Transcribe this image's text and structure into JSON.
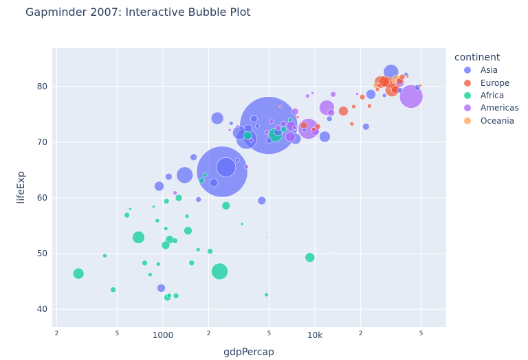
{
  "title": "Gapminder 2007: Interactive Bubble Plot",
  "chart_data": {
    "type": "scatter",
    "title": "Gapminder 2007: Interactive Bubble Plot",
    "xlabel": "gdpPercap",
    "ylabel": "lifeExp",
    "xscale": "log",
    "xlim": [
      187,
      73000
    ],
    "ylim": [
      36.8,
      86.9
    ],
    "grid": true,
    "legend_title": "continent",
    "legend_position": "right",
    "x_ticks": [
      {
        "value": 200,
        "label": "2",
        "major": false
      },
      {
        "value": 500,
        "label": "5",
        "major": false
      },
      {
        "value": 1000,
        "label": "1000",
        "major": true
      },
      {
        "value": 2000,
        "label": "2",
        "major": false
      },
      {
        "value": 5000,
        "label": "5",
        "major": false
      },
      {
        "value": 10000,
        "label": "10k",
        "major": true
      },
      {
        "value": 20000,
        "label": "2",
        "major": false
      },
      {
        "value": 50000,
        "label": "5",
        "major": false
      }
    ],
    "y_ticks": [
      40,
      50,
      60,
      70,
      80
    ],
    "series": [
      {
        "name": "Asia",
        "color": "#636efa",
        "points": [
          {
            "x": 4959,
            "y": 73.0,
            "r": 42
          },
          {
            "x": 2452,
            "y": 64.7,
            "r": 37
          },
          {
            "x": 2605,
            "y": 65.5,
            "r": 14
          },
          {
            "x": 3540,
            "y": 70.6,
            "r": 15
          },
          {
            "x": 3190,
            "y": 71.7,
            "r": 10
          },
          {
            "x": 2280,
            "y": 74.3,
            "r": 9
          },
          {
            "x": 1391,
            "y": 64.1,
            "r": 12
          },
          {
            "x": 31656,
            "y": 82.6,
            "r": 11
          },
          {
            "x": 11606,
            "y": 71.0,
            "r": 8
          },
          {
            "x": 7458,
            "y": 70.6,
            "r": 8
          },
          {
            "x": 47143,
            "y": 79.8,
            "r": 4
          },
          {
            "x": 23348,
            "y": 78.6,
            "r": 7
          },
          {
            "x": 21655,
            "y": 72.8,
            "r": 5
          },
          {
            "x": 39725,
            "y": 82.2,
            "r": 3
          },
          {
            "x": 944,
            "y": 62.1,
            "r": 7
          },
          {
            "x": 1091,
            "y": 63.8,
            "r": 5
          },
          {
            "x": 1593,
            "y": 67.3,
            "r": 5
          },
          {
            "x": 3970,
            "y": 74.2,
            "r": 5
          },
          {
            "x": 4471,
            "y": 59.5,
            "r": 6
          },
          {
            "x": 2160,
            "y": 62.7,
            "r": 6
          },
          {
            "x": 1713,
            "y": 59.7,
            "r": 4
          },
          {
            "x": 974,
            "y": 43.8,
            "r": 6
          },
          {
            "x": 3095,
            "y": 66.8,
            "r": 3
          },
          {
            "x": 3632,
            "y": 72.4,
            "r": 6
          },
          {
            "x": 5720,
            "y": 71.9,
            "r": 6
          },
          {
            "x": 2813,
            "y": 73.4,
            "r": 3
          },
          {
            "x": 12452,
            "y": 74.2,
            "r": 4
          },
          {
            "x": 8500,
            "y": 72.2,
            "r": 3
          },
          {
            "x": 4185,
            "y": 72.9,
            "r": 3
          },
          {
            "x": 5000,
            "y": 70.3,
            "r": 4
          },
          {
            "x": 36319,
            "y": 79.3,
            "r": 4
          },
          {
            "x": 28604,
            "y": 78.4,
            "r": 3
          }
        ]
      },
      {
        "name": "Europe",
        "color": "#ef553b",
        "points": [
          {
            "x": 27000,
            "y": 80.8,
            "r": 9
          },
          {
            "x": 32170,
            "y": 79.4,
            "r": 10
          },
          {
            "x": 30470,
            "y": 80.7,
            "r": 8
          },
          {
            "x": 28570,
            "y": 80.9,
            "r": 8
          },
          {
            "x": 33690,
            "y": 79.8,
            "r": 7
          },
          {
            "x": 36126,
            "y": 81.0,
            "r": 5
          },
          {
            "x": 37506,
            "y": 81.7,
            "r": 4
          },
          {
            "x": 33860,
            "y": 79.4,
            "r": 6
          },
          {
            "x": 15390,
            "y": 75.6,
            "r": 7
          },
          {
            "x": 20510,
            "y": 78.1,
            "r": 4
          },
          {
            "x": 8458,
            "y": 73.0,
            "r": 5
          },
          {
            "x": 10461,
            "y": 72.8,
            "r": 4
          },
          {
            "x": 18008,
            "y": 76.4,
            "r": 3
          },
          {
            "x": 22833,
            "y": 76.5,
            "r": 3
          },
          {
            "x": 17500,
            "y": 73.3,
            "r": 3
          },
          {
            "x": 25768,
            "y": 79.5,
            "r": 3
          },
          {
            "x": 26500,
            "y": 80.2,
            "r": 3
          },
          {
            "x": 5937,
            "y": 76.4,
            "r": 2
          },
          {
            "x": 9800,
            "y": 72.3,
            "r": 3
          },
          {
            "x": 49357,
            "y": 80.2,
            "r": 2
          },
          {
            "x": 40676,
            "y": 81.8,
            "r": 2
          },
          {
            "x": 7700,
            "y": 74.5,
            "r": 2
          }
        ]
      },
      {
        "name": "Africa",
        "color": "#00cc96",
        "points": [
          {
            "x": 2361,
            "y": 46.8,
            "r": 12
          },
          {
            "x": 6223,
            "y": 72.3,
            "r": 4
          },
          {
            "x": 5500,
            "y": 71.3,
            "r": 10
          },
          {
            "x": 3600,
            "y": 71.2,
            "r": 6
          },
          {
            "x": 9270,
            "y": 49.3,
            "r": 7
          },
          {
            "x": 278,
            "y": 46.4,
            "r": 8
          },
          {
            "x": 691,
            "y": 52.9,
            "r": 9
          },
          {
            "x": 1107,
            "y": 52.5,
            "r": 6
          },
          {
            "x": 1042,
            "y": 51.5,
            "r": 6
          },
          {
            "x": 1463,
            "y": 54.1,
            "r": 6
          },
          {
            "x": 1270,
            "y": 60.0,
            "r": 5
          },
          {
            "x": 2602,
            "y": 58.6,
            "r": 6
          },
          {
            "x": 1056,
            "y": 59.4,
            "r": 4
          },
          {
            "x": 1200,
            "y": 52.3,
            "r": 4
          },
          {
            "x": 2042,
            "y": 50.4,
            "r": 4
          },
          {
            "x": 1704,
            "y": 50.7,
            "r": 3
          },
          {
            "x": 1545,
            "y": 48.3,
            "r": 4
          },
          {
            "x": 759,
            "y": 48.3,
            "r": 4
          },
          {
            "x": 933,
            "y": 48.1,
            "r": 3
          },
          {
            "x": 823,
            "y": 46.2,
            "r": 3
          },
          {
            "x": 1220,
            "y": 42.4,
            "r": 4
          },
          {
            "x": 1100,
            "y": 42.5,
            "r": 3
          },
          {
            "x": 470,
            "y": 43.5,
            "r": 4
          },
          {
            "x": 1070,
            "y": 42.1,
            "r": 5
          },
          {
            "x": 415,
            "y": 49.6,
            "r": 3
          },
          {
            "x": 580,
            "y": 56.9,
            "r": 4
          },
          {
            "x": 609,
            "y": 58.0,
            "r": 2
          },
          {
            "x": 868,
            "y": 58.4,
            "r": 2
          },
          {
            "x": 919,
            "y": 55.9,
            "r": 3
          },
          {
            "x": 1045,
            "y": 54.5,
            "r": 3
          },
          {
            "x": 1441,
            "y": 56.7,
            "r": 3
          },
          {
            "x": 1799,
            "y": 63.1,
            "r": 4
          },
          {
            "x": 1890,
            "y": 64.1,
            "r": 3
          },
          {
            "x": 4800,
            "y": 42.6,
            "r": 3
          },
          {
            "x": 3320,
            "y": 55.3,
            "r": 2
          },
          {
            "x": 1600,
            "y": 42.6,
            "r": 1
          },
          {
            "x": 12570,
            "y": 50.7,
            "r": 1
          },
          {
            "x": 13200,
            "y": 56.7,
            "r": 1
          },
          {
            "x": 4800,
            "y": 52.9,
            "r": 1
          },
          {
            "x": 6870,
            "y": 74.0,
            "r": 3
          }
        ]
      },
      {
        "name": "Americas",
        "color": "#ab63fa",
        "points": [
          {
            "x": 42952,
            "y": 78.2,
            "r": 17
          },
          {
            "x": 9065,
            "y": 72.4,
            "r": 15
          },
          {
            "x": 11978,
            "y": 76.2,
            "r": 11
          },
          {
            "x": 7007,
            "y": 72.9,
            "r": 7
          },
          {
            "x": 10045,
            "y": 72.0,
            "r": 6
          },
          {
            "x": 6877,
            "y": 71.0,
            "r": 7
          },
          {
            "x": 7408,
            "y": 75.5,
            "r": 5
          },
          {
            "x": 12779,
            "y": 75.3,
            "r": 5
          },
          {
            "x": 13172,
            "y": 78.6,
            "r": 4
          },
          {
            "x": 36319,
            "y": 80.7,
            "r": 6
          },
          {
            "x": 6200,
            "y": 73.3,
            "r": 4
          },
          {
            "x": 3548,
            "y": 65.6,
            "r": 3
          },
          {
            "x": 1202,
            "y": 60.9,
            "r": 3
          },
          {
            "x": 5186,
            "y": 73.7,
            "r": 3
          },
          {
            "x": 8948,
            "y": 78.3,
            "r": 3
          },
          {
            "x": 9645,
            "y": 78.8,
            "r": 2
          },
          {
            "x": 7320,
            "y": 72.6,
            "r": 3
          },
          {
            "x": 3820,
            "y": 70.3,
            "r": 3
          },
          {
            "x": 18970,
            "y": 78.7,
            "r": 2
          },
          {
            "x": 5728,
            "y": 72.6,
            "r": 4
          },
          {
            "x": 2749,
            "y": 72.2,
            "r": 2
          },
          {
            "x": 4797,
            "y": 71.8,
            "r": 3
          },
          {
            "x": 3100,
            "y": 72.9,
            "r": 2
          }
        ]
      },
      {
        "name": "Oceania",
        "color": "#ffa15a",
        "points": [
          {
            "x": 34435,
            "y": 81.2,
            "r": 7
          },
          {
            "x": 25185,
            "y": 80.2,
            "r": 4
          }
        ]
      }
    ]
  },
  "axes": {
    "x_title": "gdpPercap",
    "y_title": "lifeExp"
  },
  "legend": {
    "title": "continent",
    "items": [
      {
        "label": "Asia",
        "color": "#636efa"
      },
      {
        "label": "Europe",
        "color": "#ef553b"
      },
      {
        "label": "Africa",
        "color": "#00cc96"
      },
      {
        "label": "Americas",
        "color": "#ab63fa"
      },
      {
        "label": "Oceania",
        "color": "#ffa15a"
      }
    ]
  }
}
